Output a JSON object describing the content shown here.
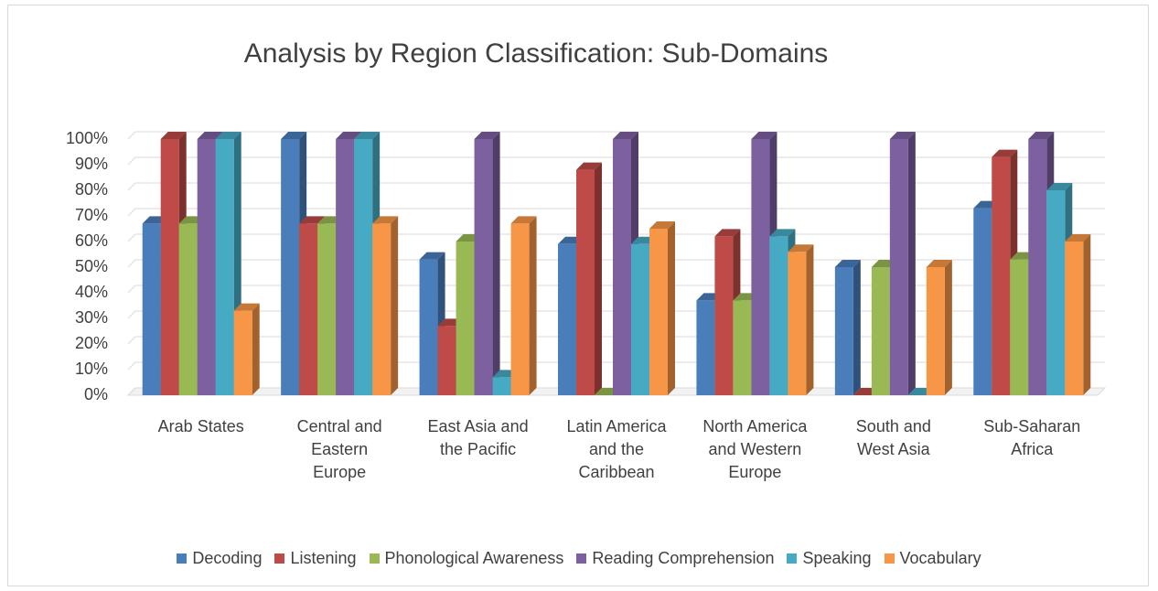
{
  "chart_data": {
    "type": "bar3d",
    "title": "Analysis by Region Classification: Sub-Domains",
    "categories": [
      "Arab States",
      "Central and Eastern Europe",
      "East Asia and the Pacific",
      "Latin America and the Caribbean",
      "North America and Western Europe",
      "South and West Asia",
      "Sub-Saharan Africa"
    ],
    "series": [
      {
        "name": "Decoding",
        "color": "#4a7ebb",
        "values": [
          67,
          100,
          53,
          59,
          37,
          50,
          73
        ]
      },
      {
        "name": "Listening",
        "color": "#be4b48",
        "values": [
          100,
          67,
          27,
          88,
          62,
          0,
          93
        ]
      },
      {
        "name": "Phonological Awareness",
        "color": "#98b954",
        "values": [
          67,
          67,
          60,
          0,
          37,
          50,
          53
        ]
      },
      {
        "name": "Reading Comprehension",
        "color": "#7d60a0",
        "values": [
          100,
          100,
          100,
          100,
          100,
          100,
          100
        ]
      },
      {
        "name": "Speaking",
        "color": "#46aac5",
        "values": [
          100,
          100,
          7,
          59,
          62,
          0,
          80
        ]
      },
      {
        "name": "Vocabulary",
        "color": "#f79646",
        "values": [
          33,
          67,
          67,
          65,
          56,
          50,
          60
        ]
      }
    ],
    "ylim": [
      0,
      100
    ],
    "yticks": [
      {
        "value": 0,
        "label": "0%"
      },
      {
        "value": 10,
        "label": "10%"
      },
      {
        "value": 20,
        "label": "20%"
      },
      {
        "value": 30,
        "label": "30%"
      },
      {
        "value": 40,
        "label": "40%"
      },
      {
        "value": 50,
        "label": "50%"
      },
      {
        "value": 60,
        "label": "60%"
      },
      {
        "value": 70,
        "label": "70%"
      },
      {
        "value": 80,
        "label": "80%"
      },
      {
        "value": 90,
        "label": "90%"
      },
      {
        "value": 100,
        "label": "100%"
      }
    ],
    "grid": true,
    "legend": "bottom"
  }
}
